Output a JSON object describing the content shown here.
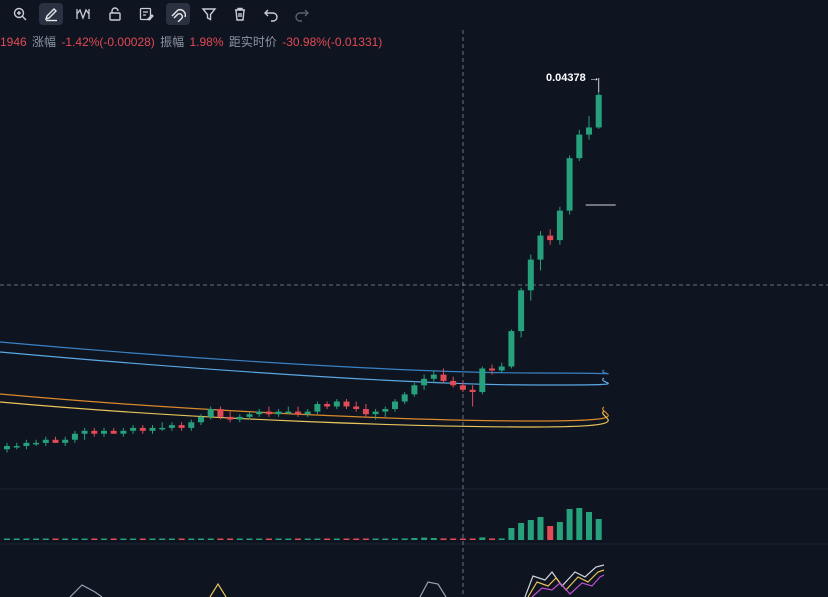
{
  "toolbar": {
    "items": [
      {
        "name": "zoom-in-icon",
        "active": false
      },
      {
        "name": "draw-pen-icon",
        "active": true
      },
      {
        "name": "measure-icon",
        "active": false
      },
      {
        "name": "lock-icon",
        "active": false
      },
      {
        "name": "edit-icon",
        "active": false
      },
      {
        "name": "magnet-icon",
        "active": true
      },
      {
        "name": "filter-icon",
        "active": false
      },
      {
        "name": "trash-icon",
        "active": false
      },
      {
        "name": "undo-icon",
        "active": false
      },
      {
        "name": "redo-icon",
        "active": false
      }
    ]
  },
  "info": {
    "price_fragment": "1946",
    "change_label": "涨幅",
    "change_value": "-1.42%(-0.00028)",
    "amplitude_label": "振幅",
    "amplitude_value": "1.98%",
    "realtime_label": "距实时价",
    "realtime_value": "-30.98%(-0.01331)"
  },
  "chart": {
    "last_price_label": "0.04378",
    "last_price_arrow": "→",
    "colors": {
      "up": "#26a17b",
      "down": "#e24a55",
      "ma_blue_1": "#3b82c4",
      "ma_blue_2": "#5aa9e6",
      "ma_orange_1": "#d98a2b",
      "ma_orange_2": "#e7c35a",
      "grid": "#1f2633",
      "crosshair": "#6b7280"
    }
  },
  "chart_data": {
    "type": "candlestick",
    "title": "",
    "ohlc": [
      [
        0.0051,
        0.0053,
        0.005,
        0.0052
      ],
      [
        0.0052,
        0.0053,
        0.0051,
        0.0052
      ],
      [
        0.0052,
        0.0054,
        0.0051,
        0.0053
      ],
      [
        0.0053,
        0.0054,
        0.0052,
        0.0053
      ],
      [
        0.0053,
        0.0055,
        0.0052,
        0.0054
      ],
      [
        0.0054,
        0.0055,
        0.0053,
        0.0053
      ],
      [
        0.0053,
        0.0055,
        0.0052,
        0.0054
      ],
      [
        0.0054,
        0.0057,
        0.0053,
        0.0056
      ],
      [
        0.0056,
        0.0058,
        0.0054,
        0.0057
      ],
      [
        0.0057,
        0.0058,
        0.0055,
        0.0056
      ],
      [
        0.0056,
        0.0058,
        0.0055,
        0.0057
      ],
      [
        0.0057,
        0.0058,
        0.0056,
        0.0056
      ],
      [
        0.0056,
        0.0058,
        0.0055,
        0.0057
      ],
      [
        0.0057,
        0.0059,
        0.0056,
        0.0058
      ],
      [
        0.0058,
        0.0059,
        0.0056,
        0.0057
      ],
      [
        0.0057,
        0.0059,
        0.0056,
        0.0058
      ],
      [
        0.0058,
        0.006,
        0.0057,
        0.0058
      ],
      [
        0.0058,
        0.006,
        0.0057,
        0.0059
      ],
      [
        0.0059,
        0.006,
        0.0057,
        0.0058
      ],
      [
        0.0058,
        0.0061,
        0.0057,
        0.006
      ],
      [
        0.006,
        0.0063,
        0.0059,
        0.0062
      ],
      [
        0.0062,
        0.0066,
        0.0061,
        0.0065
      ],
      [
        0.0065,
        0.0066,
        0.0061,
        0.0062
      ],
      [
        0.0062,
        0.0064,
        0.006,
        0.0061
      ],
      [
        0.0061,
        0.0063,
        0.006,
        0.0062
      ],
      [
        0.0062,
        0.0064,
        0.0061,
        0.0063
      ],
      [
        0.0063,
        0.0065,
        0.0062,
        0.0064
      ],
      [
        0.0064,
        0.0066,
        0.0062,
        0.0063
      ],
      [
        0.0063,
        0.0065,
        0.0062,
        0.0064
      ],
      [
        0.0064,
        0.0066,
        0.0063,
        0.0064
      ],
      [
        0.0064,
        0.0066,
        0.0062,
        0.0063
      ],
      [
        0.0063,
        0.0065,
        0.0062,
        0.0064
      ],
      [
        0.0064,
        0.0068,
        0.0063,
        0.0067
      ],
      [
        0.0067,
        0.0068,
        0.0065,
        0.0066
      ],
      [
        0.0066,
        0.0069,
        0.0065,
        0.0068
      ],
      [
        0.0068,
        0.0069,
        0.0065,
        0.0066
      ],
      [
        0.0066,
        0.0068,
        0.0064,
        0.0065
      ],
      [
        0.0065,
        0.0067,
        0.0062,
        0.0063
      ],
      [
        0.0063,
        0.0065,
        0.0061,
        0.0064
      ],
      [
        0.0064,
        0.0066,
        0.0062,
        0.0065
      ],
      [
        0.0065,
        0.0069,
        0.0064,
        0.0068
      ],
      [
        0.0068,
        0.0072,
        0.0067,
        0.0071
      ],
      [
        0.0071,
        0.0076,
        0.007,
        0.0075
      ],
      [
        0.0075,
        0.008,
        0.0073,
        0.0078
      ],
      [
        0.0078,
        0.0082,
        0.0076,
        0.008
      ],
      [
        0.008,
        0.0083,
        0.0076,
        0.0077
      ],
      [
        0.0077,
        0.0079,
        0.0074,
        0.0075
      ],
      [
        0.0075,
        0.0077,
        0.0072,
        0.0073
      ],
      [
        0.0073,
        0.0075,
        0.0066,
        0.0072
      ],
      [
        0.0072,
        0.0084,
        0.0071,
        0.0083
      ],
      [
        0.0083,
        0.0085,
        0.008,
        0.0082
      ],
      [
        0.0082,
        0.0086,
        0.0081,
        0.0084
      ],
      [
        0.0084,
        0.0105,
        0.0083,
        0.0104
      ],
      [
        0.0104,
        0.0135,
        0.01,
        0.0133
      ],
      [
        0.0133,
        0.0165,
        0.0125,
        0.016
      ],
      [
        0.016,
        0.019,
        0.015,
        0.0185
      ],
      [
        0.0185,
        0.0192,
        0.0175,
        0.018
      ],
      [
        0.018,
        0.022,
        0.0175,
        0.0215
      ],
      [
        0.0215,
        0.03,
        0.021,
        0.0295
      ],
      [
        0.0295,
        0.035,
        0.029,
        0.034
      ],
      [
        0.034,
        0.038,
        0.033,
        0.0355
      ],
      [
        0.0355,
        0.044,
        0.0352,
        0.0432
      ]
    ],
    "volume": [
      0.3,
      0.2,
      0.3,
      0.2,
      0.3,
      0.2,
      0.3,
      0.4,
      0.3,
      0.2,
      0.3,
      0.2,
      0.2,
      0.3,
      0.2,
      0.3,
      0.2,
      0.3,
      0.2,
      0.3,
      0.4,
      0.5,
      0.4,
      0.3,
      0.3,
      0.3,
      0.4,
      0.3,
      0.3,
      0.3,
      0.3,
      0.3,
      0.5,
      0.4,
      0.5,
      0.4,
      0.4,
      0.5,
      0.4,
      0.4,
      0.6,
      0.8,
      1.0,
      1.2,
      1.0,
      0.8,
      0.7,
      0.6,
      0.7,
      1.3,
      0.8,
      0.8,
      6.0,
      8.5,
      10.0,
      11.5,
      7.0,
      9.0,
      15.5,
      16.0,
      14.0,
      10.5
    ]
  }
}
